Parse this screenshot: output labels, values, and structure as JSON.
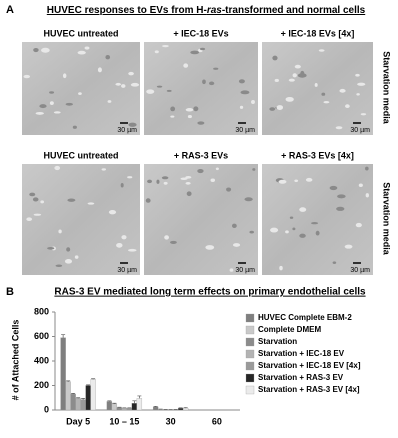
{
  "panel_a": {
    "label": "A",
    "title": [
      "HUVEC responses to EVs from H-",
      "ras",
      "-transformed and normal cells"
    ],
    "rows": [
      {
        "labels": [
          "HUVEC  untreated",
          "+ IEC-18 EVs",
          "+ IEC-18 EVs [4x]"
        ],
        "side_label": "Starvation media",
        "scale_bars": [
          "30 µm",
          "30 µm",
          "30 µm"
        ]
      },
      {
        "labels": [
          "HUVEC  untreated",
          "+ RAS-3 EVs",
          "+ RAS-3 EVs [4x]"
        ],
        "side_label": "Starvation media",
        "scale_bars": [
          "30 µm",
          "30 µm",
          "30 µm"
        ]
      }
    ]
  },
  "panel_b_label": "B",
  "chart_data": {
    "type": "bar",
    "title": "RAS-3 EV mediated long term effects on primary endothelial cells",
    "y_label": "# of Attached Cells",
    "categories": [
      "Day 5",
      "10 – 15",
      "30",
      "60"
    ],
    "ylim": [
      0,
      800
    ],
    "yticks": [
      0,
      200,
      400,
      600,
      800
    ],
    "series": [
      {
        "name": "HUVEC Complete EBM-2",
        "color": "#7f7f7f",
        "values": [
          590,
          70,
          25,
          0
        ],
        "errors": [
          25,
          5,
          5,
          0
        ]
      },
      {
        "name": "Complete DMEM",
        "color": "#c9c9c9",
        "values": [
          230,
          50,
          5,
          0
        ],
        "errors": [
          8,
          5,
          2,
          0
        ]
      },
      {
        "name": "Starvation",
        "color": "#8c8c8c",
        "values": [
          130,
          20,
          3,
          0
        ],
        "errors": [
          6,
          3,
          1,
          0
        ]
      },
      {
        "name": "Starvation + IEC-18 EV",
        "color": "#b3b3b3",
        "values": [
          95,
          15,
          2,
          0
        ],
        "errors": [
          5,
          3,
          1,
          0
        ]
      },
      {
        "name": "Starvation + IEC-18 EV [4x]",
        "color": "#9a9a9a",
        "values": [
          85,
          15,
          3,
          0
        ],
        "errors": [
          10,
          3,
          1,
          0
        ]
      },
      {
        "name": "Starvation + RAS-3 EV",
        "color": "#262626",
        "values": [
          200,
          55,
          15,
          0
        ],
        "errors": [
          5,
          20,
          3,
          0
        ]
      },
      {
        "name": "Starvation + RAS-3 EV [4x]",
        "color": "#ebebeb",
        "values": [
          250,
          95,
          15,
          0
        ],
        "errors": [
          5,
          20,
          5,
          0
        ]
      }
    ]
  }
}
